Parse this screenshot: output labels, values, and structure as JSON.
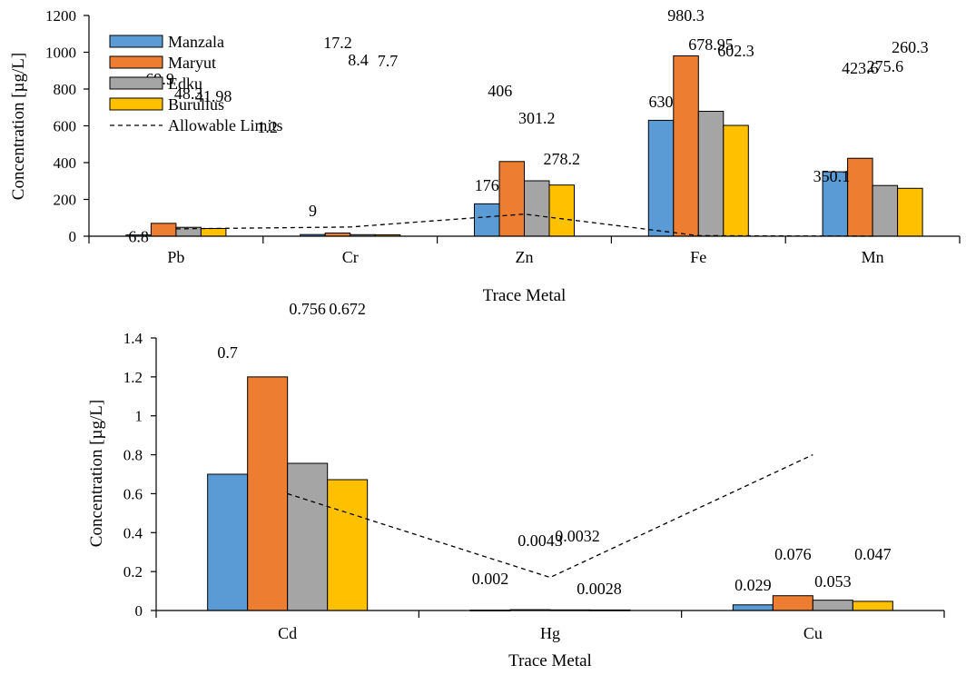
{
  "colors": {
    "Manzala": "#5b9bd5",
    "Maryut": "#ed7d31",
    "Edku": "#a5a5a5",
    "Burullus": "#ffc000",
    "limits": "#000000"
  },
  "legend": {
    "placement": "top-left",
    "entries": [
      "Manzala",
      "Maryut",
      "Edku",
      "Burullus",
      "Allowable Limits"
    ]
  },
  "chart_data": [
    {
      "type": "bar",
      "xlabel": "Trace Metal",
      "ylabel": "Concentration [µg/L]",
      "ylim": [
        0,
        1200
      ],
      "yticks": [
        0,
        200,
        400,
        600,
        800,
        1000,
        1200
      ],
      "grid": false,
      "categories": [
        "Pb",
        "Cr",
        "Zn",
        "Fe",
        "Mn"
      ],
      "series": [
        {
          "name": "Manzala",
          "values": [
            6.8,
            9,
            176,
            630,
            350.1
          ],
          "labels": [
            "6.8",
            "9",
            "176",
            "630",
            "350.1"
          ]
        },
        {
          "name": "Maryut",
          "values": [
            69.9,
            17.2,
            406,
            980.3,
            423.6
          ],
          "labels": [
            "69.9",
            "17.2",
            "406",
            "980.3",
            "423.6"
          ]
        },
        {
          "name": "Edku",
          "values": [
            48.3,
            8.4,
            301.2,
            678.95,
            275.6
          ],
          "labels": [
            "48.3",
            "8.4",
            "301.2",
            "678.95",
            "275.6"
          ]
        },
        {
          "name": "Burullus",
          "values": [
            41.98,
            7.7,
            278.2,
            602.3,
            260.3
          ],
          "labels": [
            "41.98",
            "7.7",
            "278.2",
            "602.3",
            "260.3"
          ]
        }
      ],
      "limits": {
        "name": "Allowable Limits",
        "values": [
          40,
          50,
          120,
          3,
          0
        ]
      }
    },
    {
      "type": "bar",
      "xlabel": "Trace Metal",
      "ylabel": "Concentration [µg/L]",
      "ylim": [
        0,
        1.4
      ],
      "yticks": [
        0,
        0.2,
        0.4,
        0.6,
        0.8,
        1,
        1.2,
        1.4
      ],
      "grid": false,
      "categories": [
        "Cd",
        "Hg",
        "Cu"
      ],
      "series": [
        {
          "name": "Manzala",
          "values": [
            0.7,
            0.002,
            0.029
          ],
          "labels": [
            "0.7",
            "0.002",
            "0.029"
          ]
        },
        {
          "name": "Maryut",
          "values": [
            1.2,
            0.0043,
            0.076
          ],
          "labels": [
            "1.2",
            "0.0043",
            "0.076"
          ]
        },
        {
          "name": "Edku",
          "values": [
            0.756,
            0.0032,
            0.053
          ],
          "labels": [
            "0.756",
            "0.0032",
            "0.053"
          ]
        },
        {
          "name": "Burullus",
          "values": [
            0.672,
            0.0028,
            0.047
          ],
          "labels": [
            "0.672",
            "0.0028",
            "0.047"
          ]
        }
      ],
      "limits": {
        "name": "Allowable Limits",
        "values": [
          0.6,
          0.17,
          0.8
        ]
      }
    }
  ]
}
